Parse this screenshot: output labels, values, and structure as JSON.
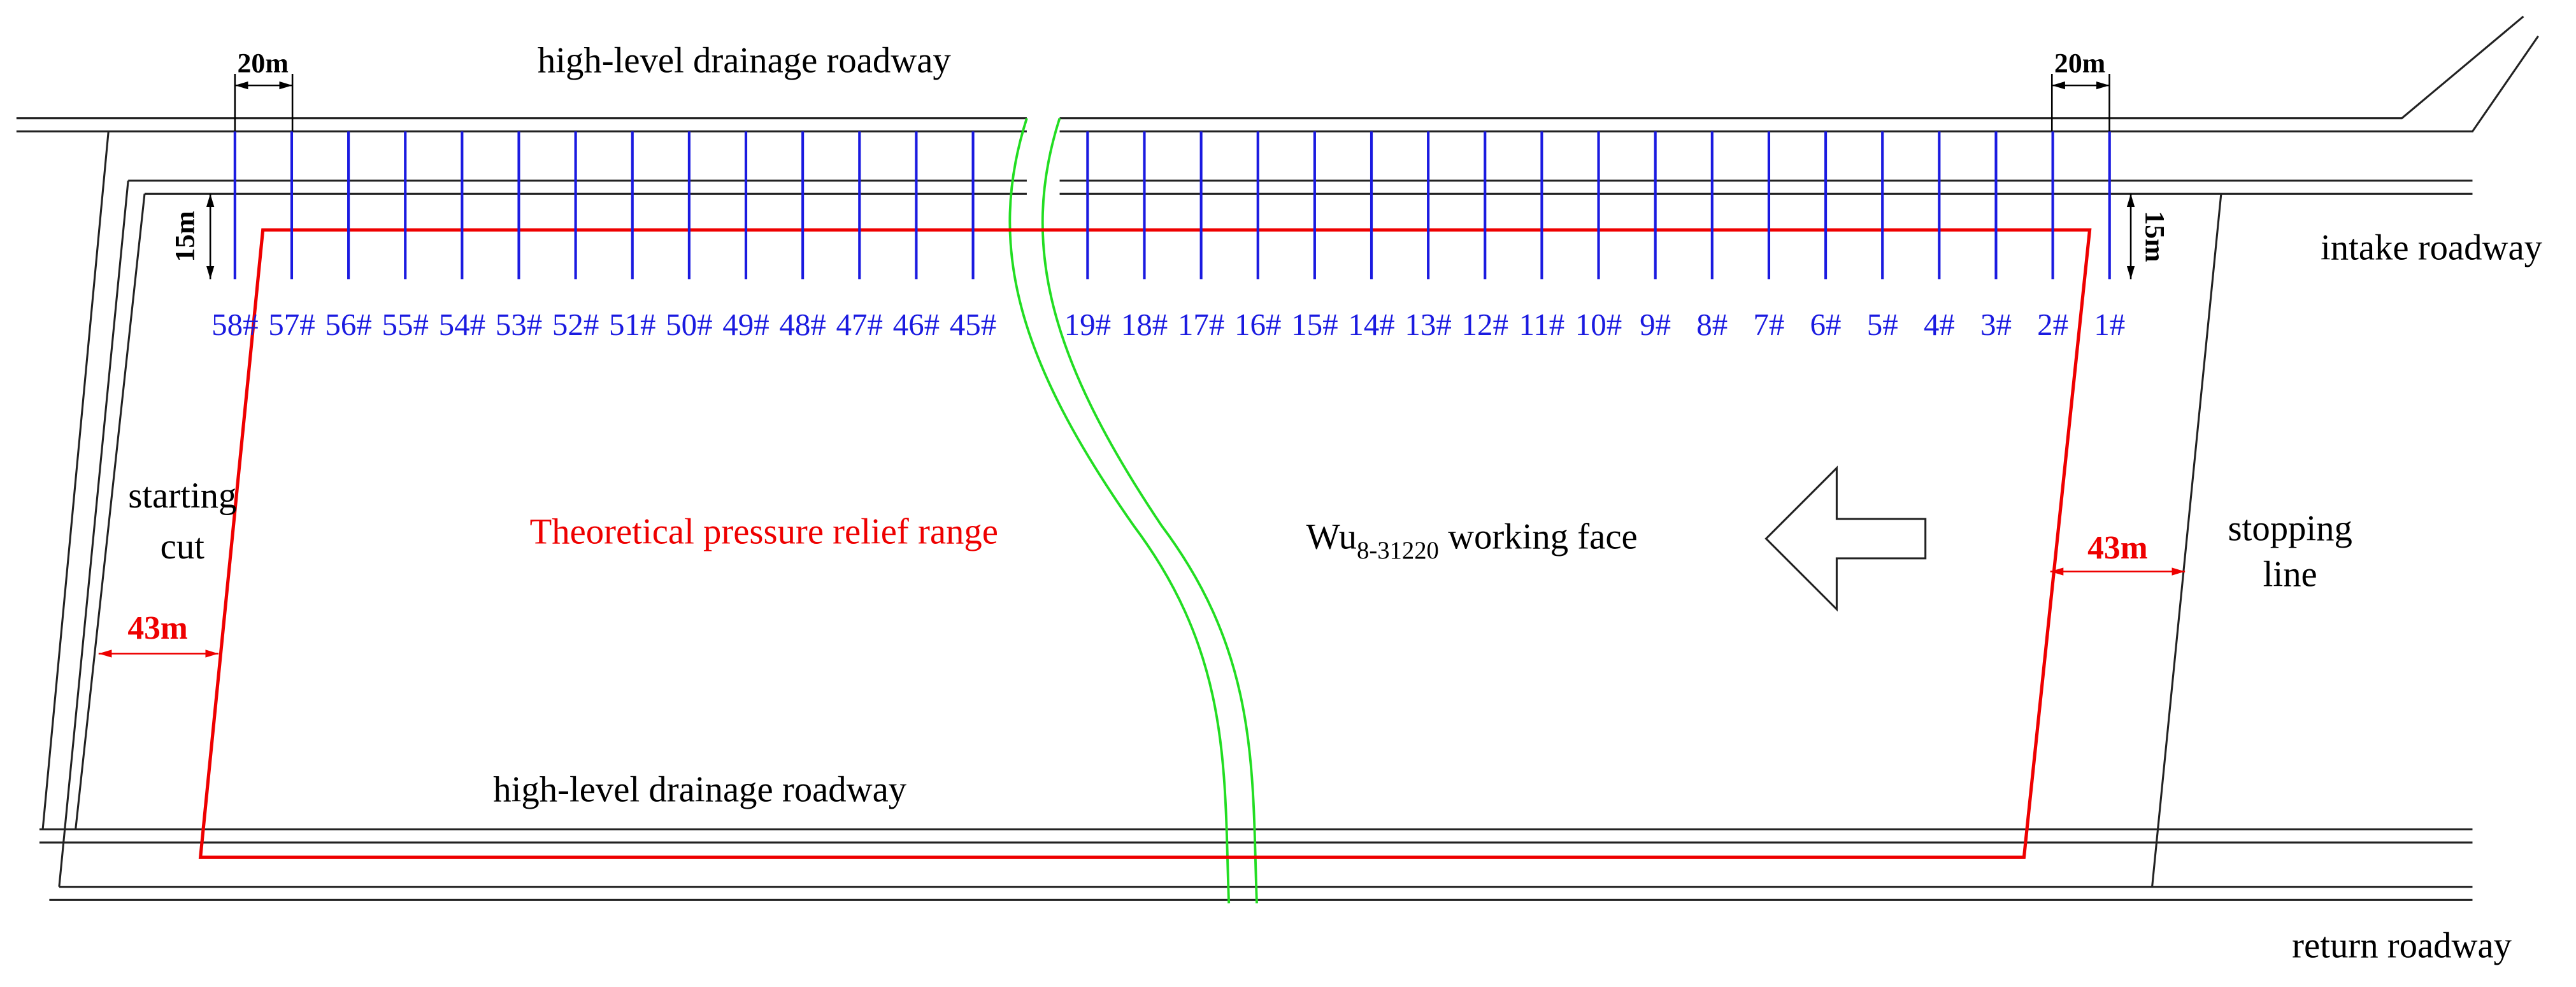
{
  "roadways": {
    "top": "high-level drainage roadway",
    "bottom": "high-level drainage roadway",
    "intake": "intake roadway",
    "return": "return roadway"
  },
  "working_face": {
    "name": "Wu",
    "subscript": "8-31220",
    "suffix": " working face"
  },
  "range_label": "Theoretical pressure relief range",
  "starting_cut": [
    "starting",
    "cut"
  ],
  "stopping_line": [
    "stopping",
    "line"
  ],
  "dimensions": {
    "spacing_left": "20m",
    "spacing_right": "20m",
    "depth_left": "15m",
    "depth_right": "15m",
    "offset_left": "43m",
    "offset_right": "43m"
  },
  "boreholes": {
    "left": [
      "58#",
      "57#",
      "56#",
      "55#",
      "54#",
      "53#",
      "52#",
      "51#",
      "50#",
      "49#",
      "48#",
      "47#",
      "46#",
      "45#"
    ],
    "right": [
      "19#",
      "18#",
      "17#",
      "16#",
      "15#",
      "14#",
      "13#",
      "12#",
      "11#",
      "10#",
      "9#",
      "8#",
      "7#",
      "6#",
      "5#",
      "4#",
      "3#",
      "2#",
      "1#"
    ]
  }
}
